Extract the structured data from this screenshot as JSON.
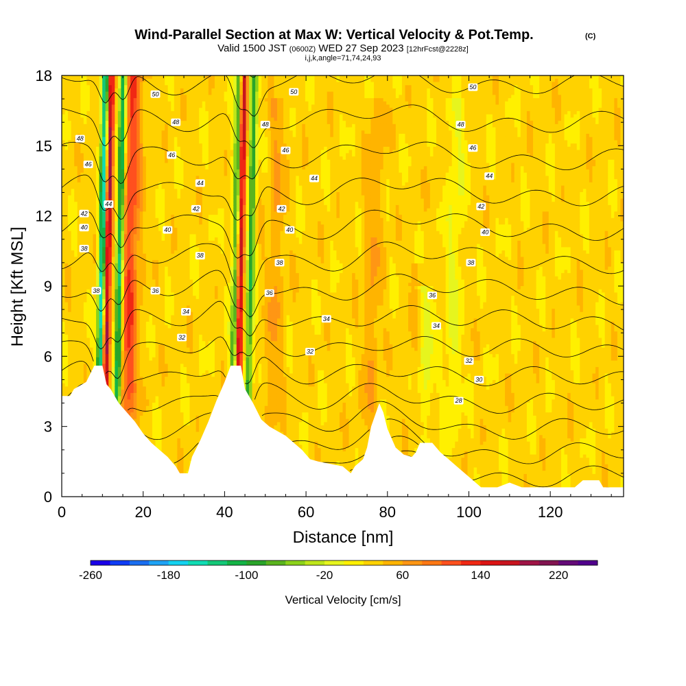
{
  "header": {
    "title": "Wind-Parallel Section at Max W: Vertical Velocity & Pot.Temp.",
    "title_mark": "(C)",
    "subtitle_prefix": "Valid 1500 JST",
    "subtitle_utc": "(0600Z)",
    "subtitle_date": "WED 27 Sep 2023",
    "subtitle_fcst": "[12hrFcst@2228z]",
    "info": "i,j,k,angle=71,74,24,93"
  },
  "chart_data": {
    "type": "heatmap",
    "title": "Wind-Parallel Section at Max W: Vertical Velocity & Pot.Temp.",
    "xlabel": "Distance [nm]",
    "ylabel": "Height [Kft MSL]",
    "xlim": [
      0,
      138
    ],
    "ylim": [
      0,
      18
    ],
    "x_ticks": [
      0,
      20,
      40,
      60,
      80,
      100,
      120
    ],
    "y_ticks": [
      0,
      3,
      6,
      9,
      12,
      15,
      18
    ],
    "colorbar": {
      "label": "Vertical Velocity [cm/s]",
      "range": [
        -260,
        260
      ],
      "step": 20,
      "tick_values": [
        -260,
        -180,
        -100,
        -20,
        60,
        140,
        220
      ],
      "tick_labels": [
        "-260",
        "-180",
        "-100",
        "-20",
        "60",
        "140",
        "220"
      ]
    },
    "terrain": [
      [
        0,
        4.3
      ],
      [
        2,
        4.3
      ],
      [
        3,
        4.6
      ],
      [
        6,
        4.9
      ],
      [
        8,
        5.6
      ],
      [
        10,
        5.6
      ],
      [
        11,
        4.8
      ],
      [
        12,
        4.6
      ],
      [
        14,
        4.0
      ],
      [
        16,
        3.6
      ],
      [
        18,
        3.2
      ],
      [
        20,
        2.7
      ],
      [
        22,
        2.3
      ],
      [
        24,
        2.0
      ],
      [
        26,
        1.7
      ],
      [
        28,
        1.3
      ],
      [
        29,
        1.0
      ],
      [
        31,
        1.0
      ],
      [
        32,
        1.7
      ],
      [
        34,
        2.4
      ],
      [
        36,
        3.2
      ],
      [
        38,
        4.1
      ],
      [
        40,
        4.9
      ],
      [
        41.5,
        5.6
      ],
      [
        44,
        5.6
      ],
      [
        45,
        4.6
      ],
      [
        47,
        4.0
      ],
      [
        49,
        3.3
      ],
      [
        51,
        3.0
      ],
      [
        53,
        2.8
      ],
      [
        55,
        2.6
      ],
      [
        57,
        2.3
      ],
      [
        59,
        2.0
      ],
      [
        61,
        1.6
      ],
      [
        63,
        1.5
      ],
      [
        66,
        1.4
      ],
      [
        69,
        1.3
      ],
      [
        71,
        1.0
      ],
      [
        72,
        1.3
      ],
      [
        74,
        1.6
      ],
      [
        75,
        2.1
      ],
      [
        76,
        3.0
      ],
      [
        77,
        3.5
      ],
      [
        78,
        4.0
      ],
      [
        79,
        3.6
      ],
      [
        80,
        2.9
      ],
      [
        81,
        2.5
      ],
      [
        82,
        2.1
      ],
      [
        84,
        1.8
      ],
      [
        86,
        1.7
      ],
      [
        87,
        1.9
      ],
      [
        88,
        2.3
      ],
      [
        91,
        2.3
      ],
      [
        93,
        1.9
      ],
      [
        95,
        1.6
      ],
      [
        97,
        1.3
      ],
      [
        99,
        1.0
      ],
      [
        101,
        0.7
      ],
      [
        103,
        0.4
      ],
      [
        107,
        0.4
      ],
      [
        110,
        0.6
      ],
      [
        113,
        0.4
      ],
      [
        126,
        0.4
      ],
      [
        128,
        0.7
      ],
      [
        132,
        0.7
      ],
      [
        133,
        0.4
      ],
      [
        138,
        0.4
      ]
    ],
    "updrafts": [
      {
        "x": 10.8,
        "top": 18,
        "w_max": 170
      },
      {
        "x": 16.3,
        "top": 18,
        "w_max": 90
      },
      {
        "x": 43.4,
        "top": 18,
        "w_max": 160
      },
      {
        "x": 52,
        "top": 17,
        "w_max": 30
      },
      {
        "x": 76,
        "top": 17,
        "w_max": 30
      },
      {
        "x": 87,
        "top": 10,
        "w_max": 20
      }
    ],
    "downdrafts": [
      {
        "x": 9.5,
        "top": 18,
        "w_min": -200
      },
      {
        "x": 13.8,
        "top": 18,
        "w_min": -170
      },
      {
        "x": 42.3,
        "top": 18,
        "w_min": -130
      },
      {
        "x": 46,
        "top": 18,
        "w_min": -120
      },
      {
        "x": 89,
        "top": 9,
        "w_min": -40
      },
      {
        "x": 96,
        "top": 17,
        "w_min": -30
      }
    ],
    "theta_contours": {
      "units": "C",
      "levels": [
        28,
        30,
        32,
        34,
        36,
        38,
        40,
        42,
        44,
        46,
        48,
        50
      ],
      "labels": [
        {
          "text": "50",
          "x": 23,
          "y": 17.2
        },
        {
          "text": "50",
          "x": 57,
          "y": 17.3
        },
        {
          "text": "50",
          "x": 101,
          "y": 17.5
        },
        {
          "text": "48",
          "x": 4.5,
          "y": 15.3
        },
        {
          "text": "48",
          "x": 28,
          "y": 16.0
        },
        {
          "text": "48",
          "x": 50,
          "y": 15.9
        },
        {
          "text": "48",
          "x": 98,
          "y": 15.9
        },
        {
          "text": "46",
          "x": 6.5,
          "y": 14.2
        },
        {
          "text": "46",
          "x": 27,
          "y": 14.6
        },
        {
          "text": "46",
          "x": 55,
          "y": 14.8
        },
        {
          "text": "46",
          "x": 101,
          "y": 14.9
        },
        {
          "text": "44",
          "x": 11.5,
          "y": 12.5
        },
        {
          "text": "44",
          "x": 34,
          "y": 13.4
        },
        {
          "text": "44",
          "x": 62,
          "y": 13.6
        },
        {
          "text": "44",
          "x": 105,
          "y": 13.7
        },
        {
          "text": "42",
          "x": 5.5,
          "y": 12.1
        },
        {
          "text": "42",
          "x": 33,
          "y": 12.3
        },
        {
          "text": "42",
          "x": 54,
          "y": 12.3
        },
        {
          "text": "42",
          "x": 103,
          "y": 12.4
        },
        {
          "text": "40",
          "x": 5.5,
          "y": 11.5
        },
        {
          "text": "40",
          "x": 26,
          "y": 11.4
        },
        {
          "text": "40",
          "x": 56,
          "y": 11.4
        },
        {
          "text": "40",
          "x": 104,
          "y": 11.3
        },
        {
          "text": "38",
          "x": 5.5,
          "y": 10.6
        },
        {
          "text": "38",
          "x": 34,
          "y": 10.3
        },
        {
          "text": "38",
          "x": 53.5,
          "y": 10.0
        },
        {
          "text": "38",
          "x": 100.5,
          "y": 10.0
        },
        {
          "text": "38",
          "x": 8.5,
          "y": 8.8
        },
        {
          "text": "36",
          "x": 23,
          "y": 8.8
        },
        {
          "text": "36",
          "x": 51,
          "y": 8.7
        },
        {
          "text": "36",
          "x": 91,
          "y": 8.6
        },
        {
          "text": "34",
          "x": 30.5,
          "y": 7.9
        },
        {
          "text": "34",
          "x": 65,
          "y": 7.6
        },
        {
          "text": "34",
          "x": 92,
          "y": 7.3
        },
        {
          "text": "32",
          "x": 29.5,
          "y": 6.8
        },
        {
          "text": "32",
          "x": 61,
          "y": 6.2
        },
        {
          "text": "32",
          "x": 100,
          "y": 5.8
        },
        {
          "text": "30",
          "x": 102.5,
          "y": 5.0
        },
        {
          "text": "28",
          "x": 97.5,
          "y": 4.1
        }
      ]
    }
  }
}
